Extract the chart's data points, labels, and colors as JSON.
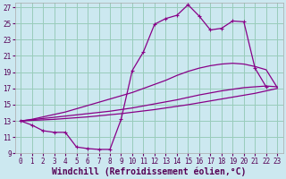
{
  "bg_color": "#cce8f0",
  "grid_color": "#99ccbb",
  "line_color": "#880088",
  "xlim": [
    -0.5,
    23.5
  ],
  "ylim": [
    9,
    27.5
  ],
  "xtick_labels": [
    "0",
    "1",
    "2",
    "3",
    "4",
    "5",
    "6",
    "7",
    "8",
    "9",
    "10",
    "11",
    "12",
    "13",
    "14",
    "15",
    "16",
    "17",
    "18",
    "19",
    "20",
    "21",
    "22",
    "23"
  ],
  "xtick_vals": [
    0,
    1,
    2,
    3,
    4,
    5,
    6,
    7,
    8,
    9,
    10,
    11,
    12,
    13,
    14,
    15,
    16,
    17,
    18,
    19,
    20,
    21,
    22,
    23
  ],
  "ytick_labels": [
    "9",
    "11",
    "13",
    "15",
    "17",
    "19",
    "21",
    "23",
    "25",
    "27"
  ],
  "ytick_vals": [
    9,
    11,
    13,
    15,
    17,
    19,
    21,
    23,
    25,
    27
  ],
  "xlabel": "Windchill (Refroidissement éolien,°C)",
  "xlabel_fontsize": 7.0,
  "tick_fontsize": 5.5,
  "s1_x": [
    0,
    1,
    2,
    3,
    4,
    5,
    6,
    7,
    8,
    9,
    10,
    11,
    12,
    13,
    14,
    15,
    16,
    17,
    18,
    19,
    20,
    21,
    22
  ],
  "s1_y": [
    13.0,
    12.5,
    11.8,
    11.6,
    11.6,
    9.8,
    9.6,
    9.5,
    9.5,
    13.2,
    19.2,
    21.5,
    24.9,
    25.6,
    26.0,
    27.3,
    25.9,
    24.2,
    24.4,
    25.3,
    25.2,
    19.5,
    17.2
  ],
  "s2_x": [
    0,
    1,
    2,
    3,
    4,
    5,
    6,
    7,
    8,
    9,
    10,
    11,
    12,
    13,
    14,
    15,
    16,
    17,
    18,
    19,
    20,
    21,
    22,
    23
  ],
  "s2_y": [
    13.0,
    13.2,
    13.5,
    13.8,
    14.1,
    14.5,
    14.9,
    15.3,
    15.7,
    16.1,
    16.5,
    17.0,
    17.5,
    18.0,
    18.6,
    19.1,
    19.5,
    19.8,
    20.0,
    20.1,
    20.0,
    19.7,
    19.3,
    17.1
  ],
  "s3_x": [
    0,
    2,
    4,
    6,
    8,
    10,
    12,
    14,
    16,
    18,
    20,
    22,
    23
  ],
  "s3_y": [
    13.0,
    13.3,
    13.6,
    13.9,
    14.2,
    14.6,
    15.1,
    15.6,
    16.2,
    16.7,
    17.1,
    17.3,
    17.2
  ],
  "s4_x": [
    0,
    3,
    6,
    9,
    12,
    15,
    18,
    21,
    23
  ],
  "s4_y": [
    13.0,
    13.2,
    13.5,
    13.9,
    14.4,
    15.0,
    15.7,
    16.4,
    17.0
  ]
}
